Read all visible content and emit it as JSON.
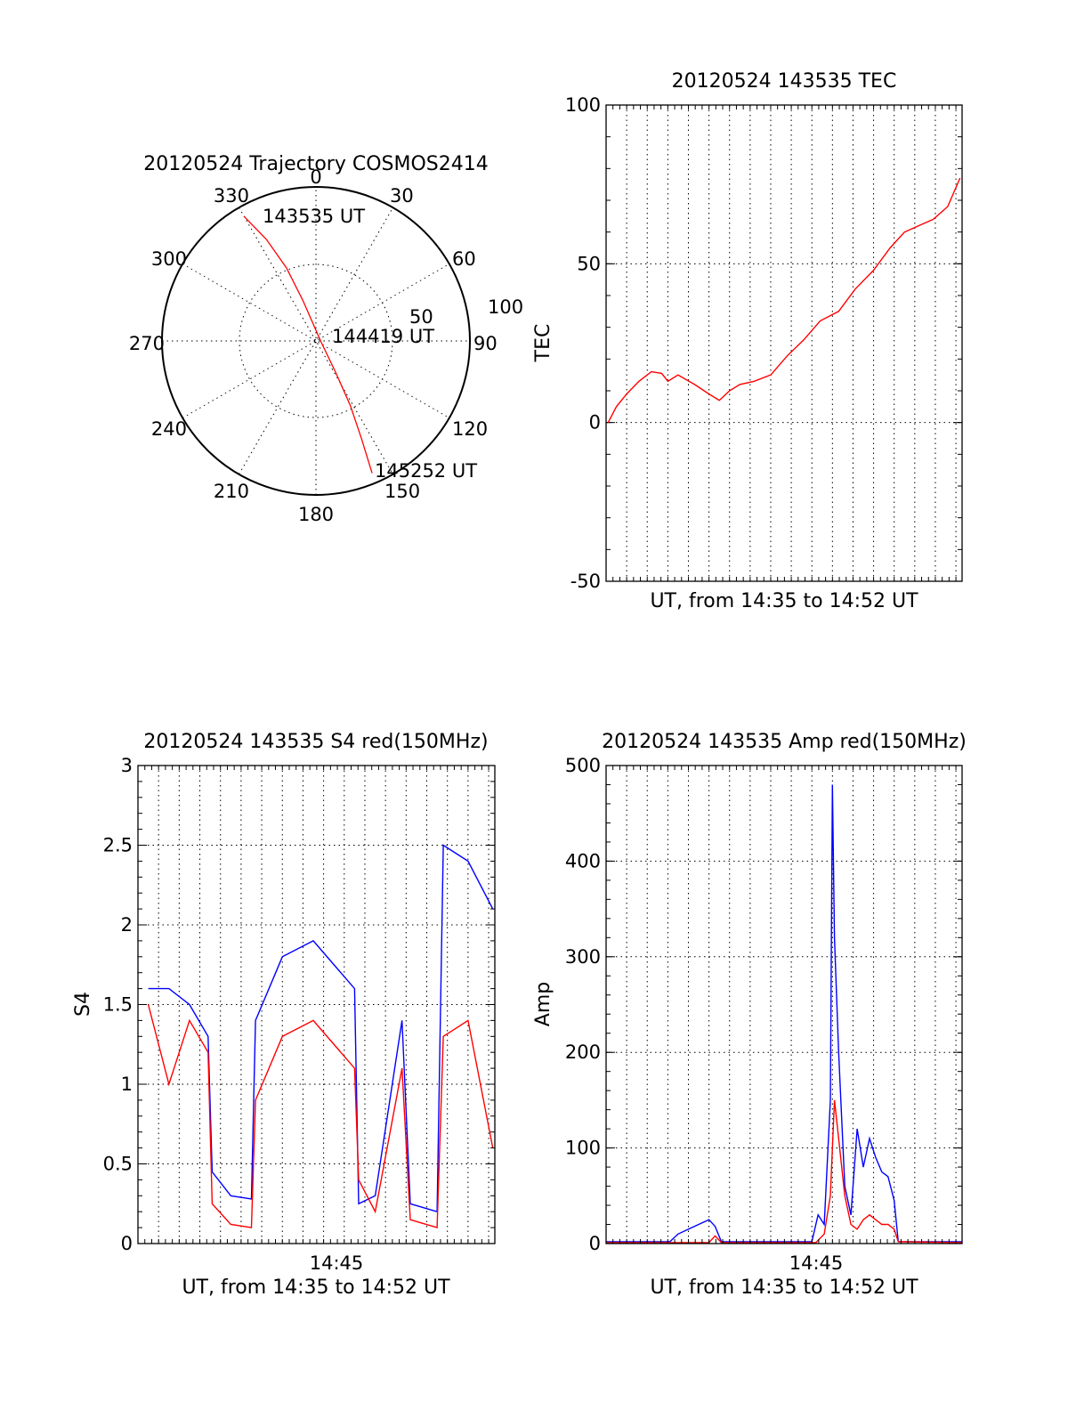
{
  "chart_data": [
    {
      "id": "polar",
      "type": "scatter",
      "subtype": "polar-trajectory",
      "title": "20120524 Trajectory COSMOS2414",
      "azimuth_labels": [
        "0",
        "30",
        "60",
        "90",
        "120",
        "150",
        "180",
        "210",
        "240",
        "270",
        "300",
        "330"
      ],
      "ring_labels": [
        "50",
        "100"
      ],
      "point_labels": [
        "143535 UT",
        "144419 UT",
        "145252 UT"
      ],
      "trajectory_color": "#ff0000",
      "trajectory": [
        {
          "az": 330,
          "zen": 84
        },
        {
          "az": 334,
          "zen": 66
        },
        {
          "az": 338,
          "zen": 46
        },
        {
          "az": 342,
          "zen": 25
        },
        {
          "az": 100,
          "zen": 3
        },
        {
          "az": 148,
          "zen": 22
        },
        {
          "az": 152,
          "zen": 43
        },
        {
          "az": 155,
          "zen": 63
        },
        {
          "az": 157,
          "zen": 84
        }
      ]
    },
    {
      "id": "tec",
      "type": "line",
      "title": "20120524 143535 TEC",
      "ylabel": "TEC",
      "xlabel": "UT, from 14:35 to 14:52 UT",
      "ylim": [
        -50,
        100
      ],
      "xlim_minutes": [
        0,
        17.3
      ],
      "y_tick_labels": [
        "-50",
        "0",
        "50",
        "100"
      ],
      "series": [
        {
          "color": "#ff0000",
          "x": [
            0.1,
            0.5,
            1.0,
            1.6,
            2.2,
            2.7,
            3.0,
            3.5,
            4.3,
            5.0,
            5.5,
            6.0,
            6.5,
            7.2,
            8.0,
            8.8,
            9.6,
            10.4,
            11.3,
            12.1,
            13.0,
            13.8,
            14.5,
            15.2,
            15.9,
            16.6,
            17.2
          ],
          "y": [
            0,
            5,
            9,
            13,
            16,
            15.5,
            13,
            15,
            12,
            9,
            7,
            10,
            12,
            13,
            15,
            21,
            26,
            32,
            35,
            42,
            48,
            55,
            60,
            62,
            64,
            68,
            77
          ]
        }
      ]
    },
    {
      "id": "s4",
      "type": "line",
      "title": "20120524 143535 S4 red(150MHz)",
      "ylabel": "S4",
      "xlabel": "UT, from 14:35 to 14:52 UT",
      "ylim": [
        0,
        3
      ],
      "xlim_minutes": [
        0,
        17.3
      ],
      "x_tick_labels": [
        "14:45"
      ],
      "y_tick_labels": [
        "0",
        "0.5",
        "1",
        "1.5",
        "2",
        "2.5",
        "3"
      ],
      "series": [
        {
          "color": "#0000ff",
          "x": [
            0.5,
            1.5,
            2.5,
            3.4,
            3.6,
            4.5,
            5.5,
            5.7,
            7.0,
            8.5,
            10.5,
            10.7,
            11.5,
            12.8,
            13.2,
            14.5,
            14.8,
            16.0,
            17.2
          ],
          "y": [
            1.6,
            1.6,
            1.5,
            1.3,
            0.45,
            0.3,
            0.28,
            1.4,
            1.8,
            1.9,
            1.6,
            0.25,
            0.3,
            1.4,
            0.25,
            0.2,
            2.5,
            2.4,
            2.1
          ]
        },
        {
          "color": "#ff0000",
          "x": [
            0.5,
            1.5,
            2.5,
            3.4,
            3.6,
            4.5,
            5.5,
            5.7,
            7.0,
            8.5,
            10.5,
            10.7,
            11.5,
            12.8,
            13.2,
            14.5,
            14.8,
            16.0,
            17.2
          ],
          "y": [
            1.5,
            1.0,
            1.4,
            1.2,
            0.25,
            0.12,
            0.1,
            0.9,
            1.3,
            1.4,
            1.1,
            0.4,
            0.2,
            1.1,
            0.15,
            0.1,
            1.3,
            1.4,
            0.6
          ]
        }
      ]
    },
    {
      "id": "amp",
      "type": "line",
      "title": "20120524 143535 Amp red(150MHz)",
      "ylabel": "Amp",
      "xlabel": "UT, from 14:35 to 14:52 UT",
      "ylim": [
        0,
        500
      ],
      "xlim_minutes": [
        0,
        17.3
      ],
      "x_tick_labels": [
        "14:45"
      ],
      "y_tick_labels": [
        "0",
        "100",
        "200",
        "300",
        "400",
        "500"
      ],
      "series": [
        {
          "color": "#0000ff",
          "x": [
            0,
            3.1,
            3.5,
            4.0,
            4.5,
            5.0,
            5.3,
            5.6,
            10.0,
            10.3,
            10.6,
            10.9,
            11.0,
            11.1,
            11.3,
            11.6,
            11.9,
            12.2,
            12.5,
            12.8,
            13.1,
            13.4,
            13.7,
            14.0,
            14.2,
            14.5,
            17.3
          ],
          "y": [
            2,
            2,
            10,
            15,
            20,
            25,
            18,
            2,
            2,
            30,
            20,
            150,
            480,
            320,
            200,
            60,
            30,
            120,
            80,
            110,
            90,
            75,
            70,
            45,
            2,
            2,
            2
          ]
        },
        {
          "color": "#ff0000",
          "x": [
            0,
            5.0,
            5.3,
            5.6,
            10.2,
            10.6,
            10.9,
            11.1,
            11.3,
            11.6,
            11.9,
            12.2,
            12.5,
            12.8,
            13.1,
            13.4,
            13.7,
            14.0,
            14.2,
            17.3
          ],
          "y": [
            1,
            1,
            8,
            1,
            1,
            10,
            50,
            150,
            110,
            50,
            20,
            15,
            25,
            30,
            25,
            20,
            20,
            15,
            2,
            1
          ]
        }
      ]
    }
  ]
}
